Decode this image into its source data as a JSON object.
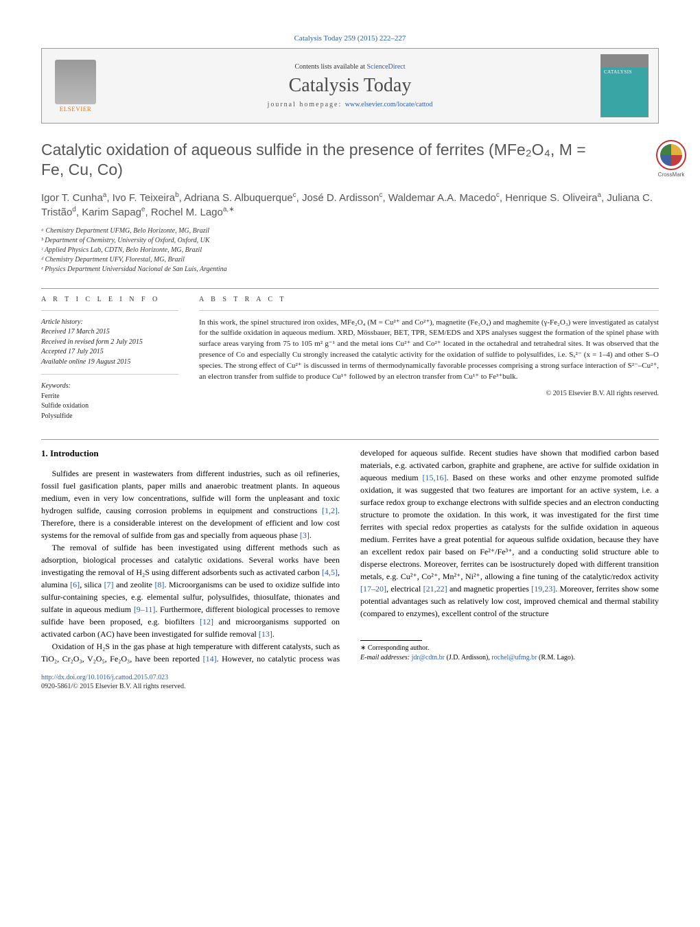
{
  "journal_ref": "Catalysis Today 259 (2015) 222–227",
  "header": {
    "elsevier": "ELSEVIER",
    "contents_prefix": "Contents lists available at ",
    "contents_link": "ScienceDirect",
    "journal_title": "Catalysis Today",
    "homepage_prefix": "journal homepage: ",
    "homepage_link": "www.elsevier.com/locate/cattod",
    "cover_text": "CATALYSIS"
  },
  "crossmark": "CrossMark",
  "title": "Catalytic oxidation of aqueous sulfide in the presence of ferrites (MFe₂O₄, M = Fe, Cu, Co)",
  "authors_html": "Igor T. Cunha<sup>a</sup>, Ivo F. Teixeira<sup>b</sup>, Adriana S. Albuquerque<sup>c</sup>, José D. Ardisson<sup>c</sup>, Waldemar A.A. Macedo<sup>c</sup>, Henrique S. Oliveira<sup>a</sup>, Juliana C. Tristão<sup>d</sup>, Karim Sapag<sup>e</sup>, Rochel M. Lago<sup>a,∗</sup>",
  "affiliations": [
    "ᵃ Chemistry Department UFMG, Belo Horizonte, MG, Brazil",
    "ᵇ Department of Chemistry, University of Oxford, Oxford, UK",
    "ᶜ Applied Physics Lab, CDTN, Belo Horizonte, MG, Brazil",
    "ᵈ Chemistry Department UFV, Florestal, MG, Brazil",
    "ᵉ Physics Department Universidad Nacional de San Luis, Argentina"
  ],
  "article_info_label": "a r t i c l e   i n f o",
  "abstract_label": "a b s t r a c t",
  "history": {
    "label": "Article history:",
    "received": "Received 17 March 2015",
    "revised": "Received in revised form 2 July 2015",
    "accepted": "Accepted 17 July 2015",
    "online": "Available online 19 August 2015"
  },
  "keywords": {
    "label": "Keywords:",
    "items": [
      "Ferrite",
      "Sulfide oxidation",
      "Polysulfide"
    ]
  },
  "abstract": "In this work, the spinel structured iron oxides, MFe₂O₄ (M = Cu²⁺ and Co²⁺), magnetite (Fe₃O₄) and maghemite (γ-Fe₂O₃) were investigated as catalyst for the sulfide oxidation in aqueous medium. XRD, Mössbauer, BET, TPR, SEM/EDS and XPS analyses suggest the formation of the spinel phase with surface areas varying from 75 to 105 m² g⁻¹ and the metal ions Cu²⁺ and Co²⁺ located in the octahedral and tetrahedral sites. It was observed that the presence of Co and especially Cu strongly increased the catalytic activity for the oxidation of sulfide to polysulfides, i.e. Sₓ²⁻ (x = 1–4) and other S–O species. The strong effect of Cu²⁺ is discussed in terms of thermodynamically favorable processes comprising a strong surface interaction of S²⁻–Cu²⁺, an electron transfer from sulfide to produce Cu¹⁺ followed by an electron transfer from Cu¹⁺ to Fe³⁺bulk.",
  "copyright": "© 2015 Elsevier B.V. All rights reserved.",
  "section1_heading": "1. Introduction",
  "body": {
    "p1": "Sulfides are present in wastewaters from different industries, such as oil refineries, fossil fuel gasification plants, paper mills and anaerobic treatment plants. In aqueous medium, even in very low concentrations, sulfide will form the unpleasant and toxic hydrogen sulfide, causing corrosion problems in equipment and constructions ",
    "p1_ref1": "[1,2]",
    "p1_b": ". Therefore, there is a considerable interest on the development of efficient and low cost systems for the removal of sulfide from gas and specially from aqueous phase ",
    "p1_ref2": "[3]",
    "p1_c": ".",
    "p2": "The removal of sulfide has been investigated using different methods such as adsorption, biological processes and catalytic oxidations. Several works have been investigating the removal of H₂S using different adsorbents such as activated carbon ",
    "p2_ref1": "[4,5]",
    "p2_b": ", alumina ",
    "p2_ref2": "[6]",
    "p2_c": ", silica ",
    "p2_ref3": "[7]",
    "p2_d": " and zeolite ",
    "p2_ref4": "[8]",
    "p2_e": ". Microorganisms can be used to oxidize sulfide into sulfur-containing species, e.g. elemental sulfur, polysulfides, thiosulfate, thionates and sulfate in aqueous medium ",
    "p2_ref5": "[9–11]",
    "p2_f": ". Furthermore, different biological processes to remove sulfide have been proposed, e.g. biofilters ",
    "p2_ref6": "[12]",
    "p2_g": " and microorganisms supported on activated carbon (AC) have been investigated for sulfide removal ",
    "p2_ref7": "[13]",
    "p2_h": ".",
    "p3": "Oxidation of H₂S in the gas phase at high temperature with different catalysts, such as TiO₂, Cr₂O₃, V₂O₅, Fe₂O₃, have been reported ",
    "p3_ref1": "[14]",
    "p3_b": ". However, no catalytic process was developed for aqueous sulfide. Recent studies have shown that modified carbon based materials, e.g. activated carbon, graphite and graphene, are active for sulfide oxidation in aqueous medium ",
    "p3_ref2": "[15,16]",
    "p3_c": ". Based on these works and other enzyme promoted sulfide oxidation, it was suggested that two features are important for an active system, i.e. a surface redox group to exchange electrons with sulfide species and an electron conducting structure to promote the oxidation. In this work, it was investigated for the first time ferrites with special redox properties as catalysts for the sulfide oxidation in aqueous medium. Ferrites have a great potential for aqueous sulfide oxidation, because they have an excellent redox pair based on Fe²⁺/Fe³⁺, and a conducting solid structure able to disperse electrons. Moreover, ferrites can be isostructurely doped with different transition metals, e.g. Cu²⁺, Co²⁺, Mn²⁺, Ni²⁺, allowing a fine tuning of the catalytic/redox activity ",
    "p3_ref3": "[17–20]",
    "p3_d": ", electrical ",
    "p3_ref4": "[21,22]",
    "p3_e": " and magnetic properties ",
    "p3_ref5": "[19,23]",
    "p3_f": ". Moreover, ferrites show some potential advantages such as relatively low cost, improved chemical and thermal stability (compared to enzymes), excellent control of the structure"
  },
  "footnotes": {
    "corr": "∗ Corresponding author.",
    "email_label": "E-mail addresses: ",
    "email1": "jdr@cdtn.br",
    "email1_name": " (J.D. Ardisson), ",
    "email2": "rochel@ufmg.br",
    "email2_name": " (R.M. Lago)."
  },
  "footer": {
    "doi": "http://dx.doi.org/10.1016/j.cattod.2015.07.023",
    "issn": "0920-5861/© 2015 Elsevier B.V. All rights reserved."
  }
}
